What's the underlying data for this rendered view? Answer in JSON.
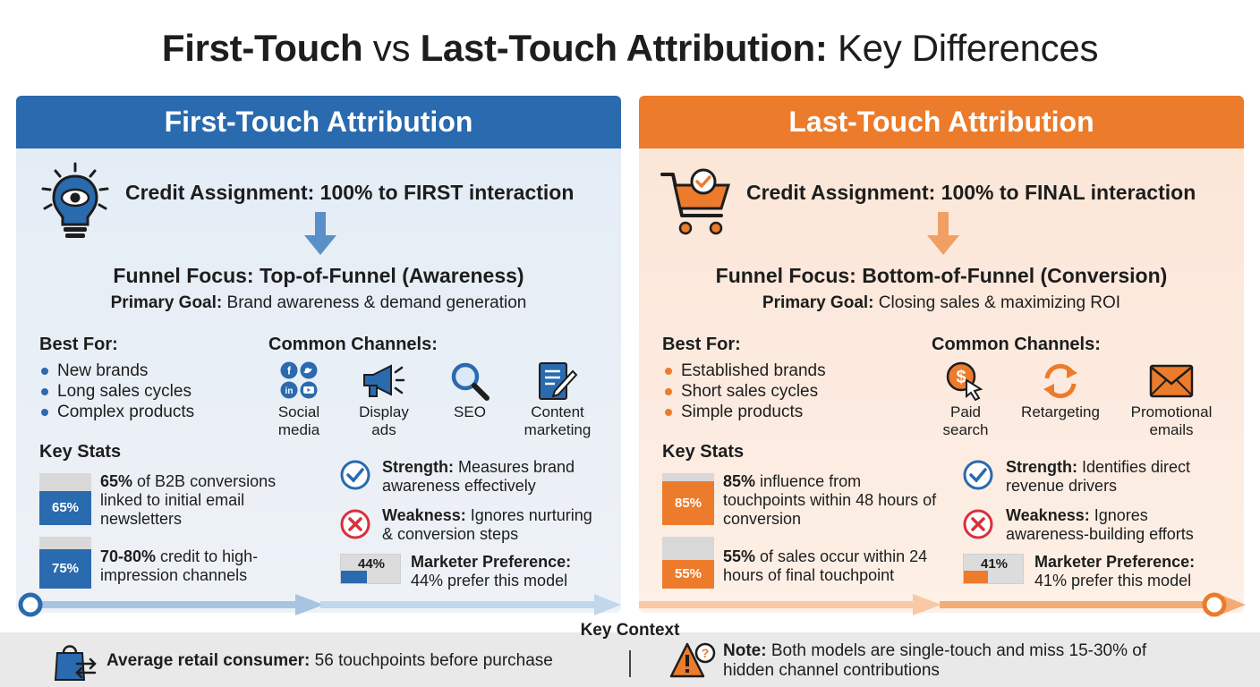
{
  "title": {
    "part1": "First-Touch",
    "vs": "vs",
    "part2": "Last-Touch Attribution:",
    "part3": "Key Differences"
  },
  "colors": {
    "first_accent": "#2a6aae",
    "last_accent": "#ec7b2b",
    "check_blue": "#2a6aae",
    "cross_red": "#d9303b"
  },
  "first": {
    "header": "First-Touch Attribution",
    "credit": "Credit Assignment: 100% to FIRST interaction",
    "credit_icon": "lightbulb-eye-icon",
    "funnel_focus": "Funnel Focus: Top-of-Funnel (Awareness)",
    "goal_label": "Primary Goal:",
    "goal_text": "Brand awareness & demand generation",
    "best_for_heading": "Best For:",
    "best_for": [
      "New brands",
      "Long sales cycles",
      "Complex products"
    ],
    "channels_heading": "Common Channels:",
    "channels": [
      {
        "line1": "Social",
        "line2": "media",
        "icon": "social-media-icon"
      },
      {
        "line1": "Display",
        "line2": "ads",
        "icon": "megaphone-icon"
      },
      {
        "line1": "SEO",
        "line2": "",
        "icon": "magnifier-icon"
      },
      {
        "line1": "Content",
        "line2": "marketing",
        "icon": "document-pen-icon"
      }
    ],
    "key_stats_heading": "Key Stats",
    "stats": [
      {
        "badge": "65%",
        "fill": 0.65,
        "bold": "65%",
        "text": " of B2B conversions linked to initial email newsletters"
      },
      {
        "badge": "75%",
        "fill": 0.75,
        "bold": "70-80%",
        "text": " credit to high-impression channels"
      }
    ],
    "strength_label": "Strength:",
    "strength_text": " Measures brand awareness effectively",
    "weakness_label": "Weakness:",
    "weakness_text": " Ignores nurturing & conversion steps",
    "pref_pct": "44%",
    "pref_value": 0.44,
    "pref_label": "Marketer Preference:",
    "pref_text": "44% prefer this model"
  },
  "last": {
    "header": "Last-Touch Attribution",
    "credit": "Credit Assignment: 100% to FINAL interaction",
    "credit_icon": "shopping-cart-check-icon",
    "funnel_focus": "Funnel Focus: Bottom-of-Funnel (Conversion)",
    "goal_label": "Primary Goal:",
    "goal_text": "Closing sales & maximizing ROI",
    "best_for_heading": "Best For:",
    "best_for": [
      "Established brands",
      "Short sales cycles",
      "Simple products"
    ],
    "channels_heading": "Common Channels:",
    "channels": [
      {
        "line1": "Paid",
        "line2": "search",
        "icon": "dollar-cursor-icon"
      },
      {
        "line1": "Retargeting",
        "line2": "",
        "icon": "refresh-arrows-icon"
      },
      {
        "line1": "Promotional",
        "line2": "emails",
        "icon": "envelope-icon"
      }
    ],
    "key_stats_heading": "Key Stats",
    "stats": [
      {
        "badge": "85%",
        "fill": 0.85,
        "bold": "85%",
        "text": " influence from touchpoints within 48 hours of conversion"
      },
      {
        "badge": "55%",
        "fill": 0.55,
        "bold": "55%",
        "text": " of sales occur within 24 hours of final touchpoint"
      }
    ],
    "strength_label": "Strength:",
    "strength_text": " Identifies direct revenue drivers",
    "weakness_label": "Weakness:",
    "weakness_text": " Ignores awareness-building efforts",
    "pref_pct": "41%",
    "pref_value": 0.41,
    "pref_label": "Marketer Preference:",
    "pref_text": "41% prefer this model"
  },
  "context": {
    "heading": "Key Context",
    "left_label": "Average retail consumer:",
    "left_text": " 56 touchpoints before purchase",
    "right_label": "Note:",
    "right_text": " Both models are single-touch and miss 15-30% of hidden channel contributions"
  }
}
